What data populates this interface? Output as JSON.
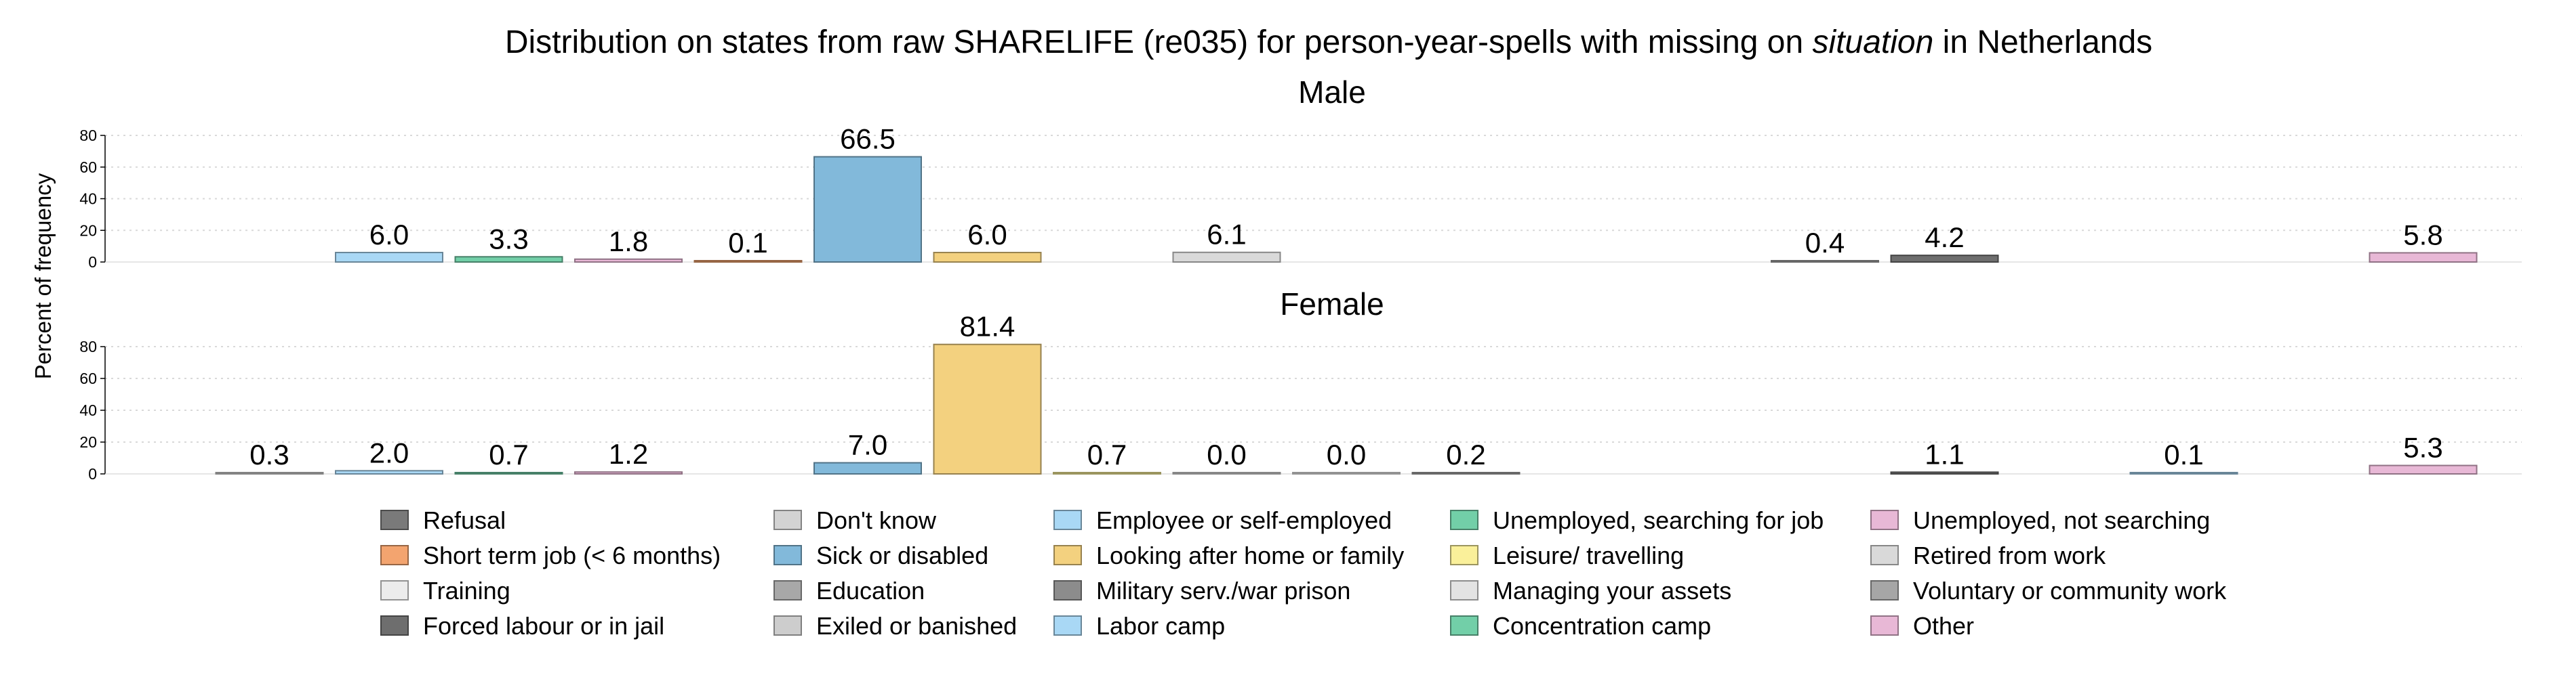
{
  "chart_data": {
    "type": "bar",
    "title_parts": [
      "Distribution on states from raw SHARELIFE (re035) for person-year-spells with missing on ",
      "situation",
      " in Netherlands"
    ],
    "ylabel": "Percent of frequency",
    "yticks": [
      0,
      20,
      40,
      60,
      80
    ],
    "ylim": [
      0,
      80
    ],
    "grid": true,
    "legend_position": "bottom",
    "categories": [
      {
        "name": "Refusal",
        "color": "#7a7a7a"
      },
      {
        "name": "Don't know",
        "color": "#d3d3d3"
      },
      {
        "name": "Employee or self-employed",
        "color": "#a9d8f5"
      },
      {
        "name": "Unemployed, searching for job",
        "color": "#72cfa8"
      },
      {
        "name": "Unemployed, not searching",
        "color": "#e8b8d6"
      },
      {
        "name": "Short term job (< 6 months)",
        "color": "#f3a46f"
      },
      {
        "name": "Sick or disabled",
        "color": "#82b9da"
      },
      {
        "name": "Looking after home or family",
        "color": "#f3d17f"
      },
      {
        "name": "Leisure/ travelling",
        "color": "#faf09a"
      },
      {
        "name": "Retired from work",
        "color": "#d9d9d9"
      },
      {
        "name": "Training",
        "color": "#ececec"
      },
      {
        "name": "Education",
        "color": "#a8a8a8"
      },
      {
        "name": "Military serv./war prison",
        "color": "#8c8c8c"
      },
      {
        "name": "Managing your assets",
        "color": "#e3e3e3"
      },
      {
        "name": "Voluntary or community work",
        "color": "#a6a6a6"
      },
      {
        "name": "Forced labour or in jail",
        "color": "#6e6e6e"
      },
      {
        "name": "Exiled or banished",
        "color": "#cdcdcd"
      },
      {
        "name": "Labor camp",
        "color": "#a9d8f5"
      },
      {
        "name": "Concentration camp",
        "color": "#72cfa8"
      },
      {
        "name": "Other",
        "color": "#e8b8d6"
      }
    ],
    "panels": [
      {
        "label": "Male",
        "values": [
          null,
          null,
          6.0,
          3.3,
          1.8,
          0.1,
          66.5,
          6.0,
          null,
          6.1,
          null,
          null,
          null,
          null,
          0.4,
          4.2,
          null,
          null,
          null,
          5.8
        ],
        "labels": [
          "",
          "",
          "6.0",
          "3.3",
          "1.8",
          "0.1",
          "66.5",
          "6.0",
          "",
          "6.1",
          "",
          "",
          "",
          "",
          "0.4",
          "4.2",
          "",
          "",
          "",
          "5.8"
        ]
      },
      {
        "label": "Female",
        "values": [
          null,
          0.3,
          2.0,
          0.7,
          1.2,
          null,
          7.0,
          81.4,
          0.7,
          0.0,
          0.0,
          0.2,
          null,
          null,
          null,
          1.1,
          null,
          0.1,
          null,
          5.3
        ],
        "labels": [
          "",
          "0.3",
          "2.0",
          "0.7",
          "1.2",
          "",
          "7.0",
          "81.4",
          "0.7",
          "0.0",
          "0.0",
          "0.2",
          "",
          "",
          "",
          "1.1",
          "",
          "0.1",
          "",
          "5.3"
        ]
      }
    ],
    "legend_order": [
      "Refusal",
      "Short term job (< 6 months)",
      "Training",
      "Forced labour or in jail",
      "Don't know",
      "Sick or disabled",
      "Education",
      "Exiled or banished",
      "Employee or self-employed",
      "Looking after home or family",
      "Military serv./war prison",
      "Labor camp",
      "Unemployed, searching for job",
      "Leisure/ travelling",
      "Managing your assets",
      "Concentration camp",
      "Unemployed, not searching",
      "Retired from work",
      "Voluntary or community work",
      "Other"
    ]
  }
}
